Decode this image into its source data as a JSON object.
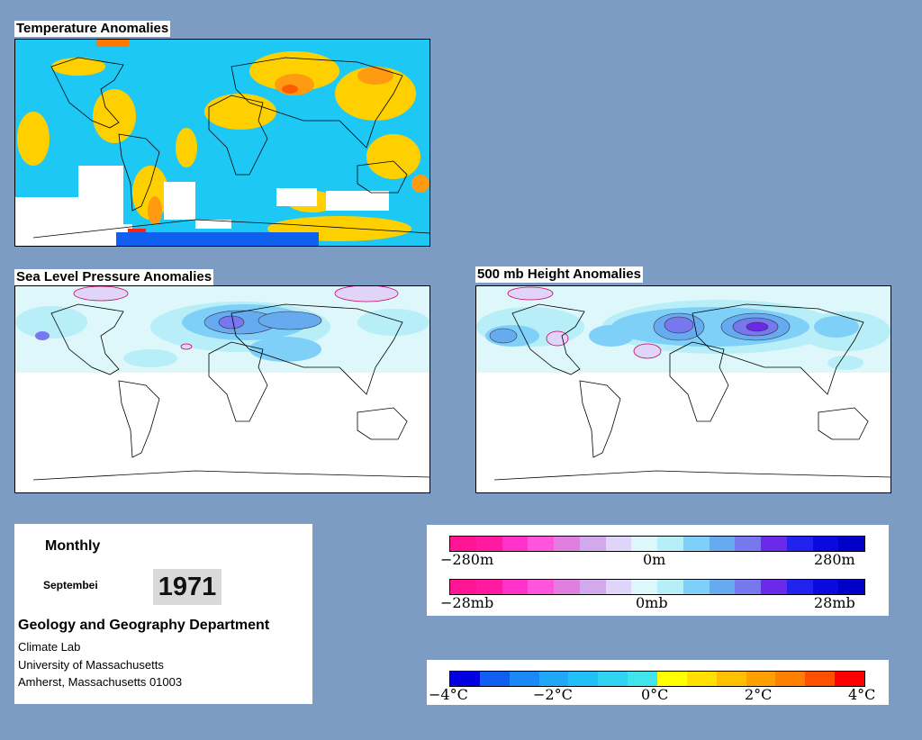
{
  "panels": {
    "temperature": {
      "title": "Temperature Anomalies"
    },
    "sea_level_pressure": {
      "title": "Sea Level Pressure Anomalies"
    },
    "height_500mb": {
      "title": "500 mb Height Anomalies"
    }
  },
  "info": {
    "period": "Monthly",
    "month": "Septembei",
    "year": "1971",
    "department": "Geology and Geography Department",
    "lines": [
      "Climate Lab",
      "University of Massachusetts",
      "Amherst, Massachusetts 01003"
    ]
  },
  "legend_height": {
    "colors": [
      "#ff1493",
      "#ff1aa0",
      "#ff33cc",
      "#ff55dd",
      "#e07fe0",
      "#d4a8ec",
      "#e0d4f8",
      "#ddf7fb",
      "#b8eef8",
      "#7fd0f8",
      "#66aaf0",
      "#7777ee",
      "#6a2ae8",
      "#2222ee",
      "#0a0ae0",
      "#0000c8"
    ],
    "min": "−280m",
    "mid": "0m",
    "max": "280m"
  },
  "legend_pressure": {
    "colors": [
      "#ff1493",
      "#ff1aa0",
      "#ff33cc",
      "#ff55dd",
      "#e07fe0",
      "#d4a8ec",
      "#e0d4f8",
      "#ddf7fb",
      "#b8eef8",
      "#7fd0f8",
      "#66aaf0",
      "#7777ee",
      "#6a2ae8",
      "#2222ee",
      "#0a0ae0",
      "#0000c8"
    ],
    "min": "−28mb",
    "mid": "0mb",
    "max": "28mb"
  },
  "legend_temperature": {
    "colors": [
      "#0000e0",
      "#1060f0",
      "#1a88f5",
      "#20a8f8",
      "#22c0f8",
      "#30d4f0",
      "#40e4ec",
      "#ffff00",
      "#ffe000",
      "#ffc000",
      "#ffa000",
      "#ff8000",
      "#ff5000",
      "#ff0000"
    ],
    "labels": [
      "−4°C",
      "−2°C",
      "0°C",
      "2°C",
      "4°C"
    ]
  }
}
